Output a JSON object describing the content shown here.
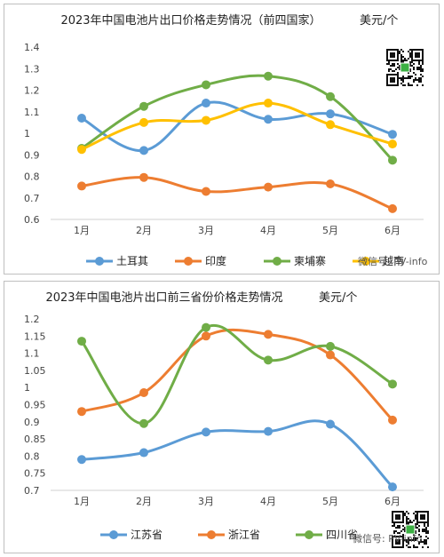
{
  "chart_data": [
    {
      "type": "line",
      "title": "2023年中国电池片出口价格走势情况（前四国家）",
      "unit": "美元/个",
      "categories": [
        "1月",
        "2月",
        "3月",
        "4月",
        "5月",
        "6月"
      ],
      "yticks": [
        "0.6",
        "0.7",
        "0.8",
        "0.9",
        "1",
        "1.1",
        "1.2",
        "1.3",
        "1.4"
      ],
      "ylim": [
        0.6,
        1.4
      ],
      "grid": false,
      "legend_position": "bottom",
      "series": [
        {
          "name": "土耳其",
          "color": "#5B9BD5",
          "values": [
            1.07,
            0.92,
            1.14,
            1.065,
            1.09,
            0.995
          ]
        },
        {
          "name": "印度",
          "color": "#ED7D31",
          "values": [
            0.755,
            0.795,
            0.73,
            0.75,
            0.765,
            0.65
          ]
        },
        {
          "name": "柬埔寨",
          "color": "#70AD47",
          "values": [
            0.93,
            1.125,
            1.225,
            1.265,
            1.17,
            0.875
          ]
        },
        {
          "name": "越南",
          "color": "#FFC000",
          "values": [
            0.925,
            1.05,
            1.06,
            1.14,
            1.04,
            0.95
          ]
        }
      ]
    },
    {
      "type": "line",
      "title": "2023年中国电池片出口前三省份价格走势情况",
      "unit": "美元/个",
      "categories": [
        "1月",
        "2月",
        "3月",
        "4月",
        "5月",
        "6月"
      ],
      "yticks": [
        "0.7",
        "0.75",
        "0.8",
        "0.85",
        "0.9",
        "0.95",
        "1",
        "1.05",
        "1.1",
        "1.15",
        "1.2"
      ],
      "ylim": [
        0.7,
        1.2
      ],
      "grid": false,
      "legend_position": "bottom",
      "series": [
        {
          "name": "江苏省",
          "color": "#5B9BD5",
          "values": [
            0.79,
            0.81,
            0.87,
            0.872,
            0.893,
            0.71
          ]
        },
        {
          "name": "浙江省",
          "color": "#ED7D31",
          "values": [
            0.93,
            0.985,
            1.15,
            1.155,
            1.095,
            0.905
          ]
        },
        {
          "name": "四川省",
          "color": "#70AD47",
          "values": [
            1.135,
            0.895,
            1.175,
            1.08,
            1.12,
            1.01
          ]
        }
      ]
    }
  ],
  "watermark": {
    "text": "微信号: PV-info",
    "qr_icon": "qr-code-icon"
  }
}
